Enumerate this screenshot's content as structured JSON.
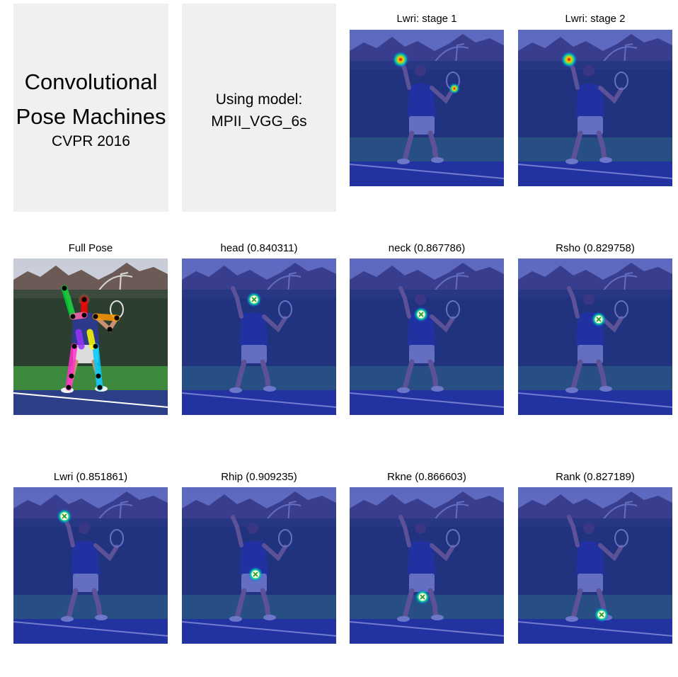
{
  "title_panel": {
    "line1": "Convolutional",
    "line2": "Pose Machines",
    "venue": "CVPR 2016"
  },
  "model_panel": {
    "line1": "Using model:",
    "line2": "MPII_VGG_6s"
  },
  "panels": [
    {
      "title": "Lwri: stage 1"
    },
    {
      "title": "Lwri: stage 2"
    },
    {
      "title": "Full Pose"
    },
    {
      "title": "head (0.840311)"
    },
    {
      "title": "neck (0.867786)"
    },
    {
      "title": "Rsho (0.829758)"
    },
    {
      "title": "Lwri (0.851861)"
    },
    {
      "title": "Rhip (0.909235)"
    },
    {
      "title": "Rkne (0.866603)"
    },
    {
      "title": "Rank (0.827189)"
    }
  ],
  "limb_colors": [
    "#ff0000",
    "#00cc33",
    "#ff9900",
    "#ff33cc",
    "#00ccff",
    "#9933ff",
    "#ffff00",
    "#ff66aa"
  ],
  "marker_color": "#ffffff"
}
